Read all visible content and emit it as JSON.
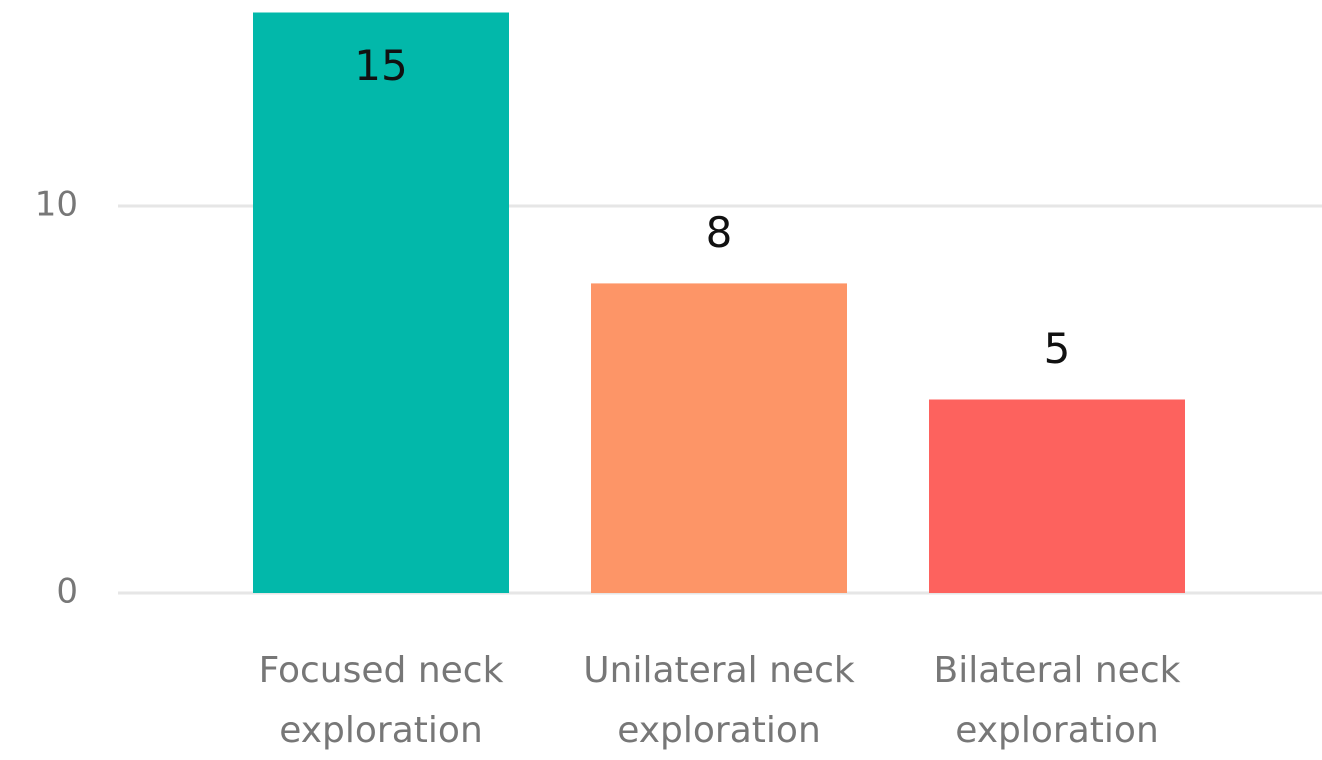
{
  "chart_data": {
    "type": "bar",
    "categories": [
      "Focused neck exploration",
      "Unilateral neck exploration",
      "Bilateral neck exploration"
    ],
    "values": [
      15,
      8,
      5
    ],
    "colors": [
      "#02b8aa",
      "#fd9567",
      "#fd625e"
    ],
    "ylim": [
      0,
      15
    ],
    "yticks": [
      0,
      10
    ],
    "grid": true
  }
}
